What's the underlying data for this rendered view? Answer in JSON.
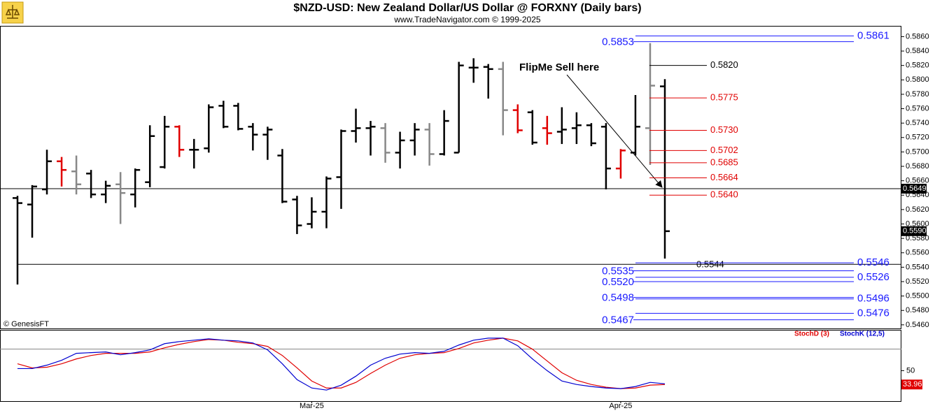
{
  "chart_data": [
    {
      "type": "ohlc",
      "title": "$NZD-USD:  New Zealand Dollar/US Dollar @ FORXNY  (Daily bars)",
      "subtitle": "www.TradeNavigator.com © 1999-2025",
      "source": "© GenesisFT",
      "annotation": "FlipMe Sell here",
      "categories": [
        null,
        null,
        null,
        null,
        null,
        null,
        null,
        null,
        null,
        null,
        null,
        null,
        null,
        null,
        null,
        null,
        null,
        null,
        null,
        null,
        "Mar-25",
        null,
        null,
        null,
        null,
        null,
        null,
        null,
        null,
        null,
        null,
        null,
        null,
        null,
        null,
        null,
        null,
        null,
        null,
        null,
        null,
        "Apr-25",
        null,
        null,
        null
      ],
      "open": [
        0.5636,
        0.5627,
        0.5648,
        0.5687,
        0.5673,
        0.567,
        0.5641,
        0.5655,
        0.5641,
        0.5658,
        0.5679,
        0.5735,
        0.5703,
        0.5705,
        0.5764,
        0.5764,
        0.5735,
        0.5724,
        0.5695,
        0.5634,
        0.56,
        0.5617,
        0.5665,
        0.5729,
        0.5733,
        0.5733,
        0.5699,
        0.5716,
        0.5731,
        0.5697,
        0.5699,
        0.5817,
        0.5818,
        0.5815,
        0.5758,
        0.5755,
        0.5733,
        0.5728,
        0.5733,
        0.5737,
        0.5735,
        0.5677,
        0.5699,
        0.5733,
        0.5791
      ],
      "high": [
        0.5639,
        0.5654,
        0.5703,
        0.5693,
        0.5695,
        0.5675,
        0.566,
        0.5672,
        0.5677,
        0.5737,
        0.575,
        0.5737,
        0.5718,
        0.5766,
        0.5771,
        0.5768,
        0.574,
        0.5735,
        0.5704,
        0.5639,
        0.5637,
        0.5666,
        0.5731,
        0.576,
        0.5743,
        0.574,
        0.5728,
        0.574,
        0.574,
        0.5758,
        0.5825,
        0.583,
        0.5822,
        0.5825,
        0.5766,
        0.5758,
        0.575,
        0.5762,
        0.5755,
        0.574,
        0.574,
        0.5704,
        0.5779,
        0.5851,
        0.5801
      ],
      "low": [
        0.5516,
        0.5581,
        0.5641,
        0.5652,
        0.5641,
        0.5636,
        0.5629,
        0.56,
        0.5623,
        0.5651,
        0.5677,
        0.5693,
        0.5677,
        0.5699,
        0.5733,
        0.573,
        0.5702,
        0.5689,
        0.5629,
        0.5586,
        0.5594,
        0.5594,
        0.5621,
        0.5713,
        0.5695,
        0.5685,
        0.5677,
        0.5695,
        0.5681,
        0.5695,
        0.5699,
        0.5796,
        0.5774,
        0.5723,
        0.5726,
        0.571,
        0.571,
        0.5711,
        0.5711,
        0.5708,
        0.5648,
        0.5663,
        0.5695,
        0.5682,
        0.5552
      ],
      "close": [
        0.5629,
        0.5652,
        0.5687,
        0.5675,
        0.5655,
        0.5641,
        0.5653,
        0.5643,
        0.5675,
        0.5722,
        0.5735,
        0.5703,
        0.5703,
        0.5762,
        0.5735,
        0.5732,
        0.5724,
        0.5731,
        0.5631,
        0.5598,
        0.5617,
        0.5663,
        0.5729,
        0.5733,
        0.5735,
        0.5699,
        0.5716,
        0.5731,
        0.5697,
        0.5743,
        0.582,
        0.5817,
        0.5815,
        0.5758,
        0.573,
        0.5713,
        0.5726,
        0.5731,
        0.5737,
        0.5712,
        0.5677,
        0.5702,
        0.5735,
        0.5792,
        0.559
      ],
      "bar_colors": [
        "#000000",
        "#000000",
        "#000000",
        "#e00000",
        "#888888",
        "#000000",
        "#000000",
        "#888888",
        "#000000",
        "#000000",
        "#000000",
        "#e00000",
        "#000000",
        "#000000",
        "#000000",
        "#000000",
        "#000000",
        "#000000",
        "#000000",
        "#000000",
        "#000000",
        "#000000",
        "#000000",
        "#000000",
        "#000000",
        "#888888",
        "#000000",
        "#000000",
        "#888888",
        "#000000",
        "#000000",
        "#000000",
        "#000000",
        "#888888",
        "#e00000",
        "#000000",
        "#e00000",
        "#000000",
        "#000000",
        "#000000",
        "#000000",
        "#e00000",
        "#000000",
        "#888888",
        "#000000"
      ],
      "ylim": [
        0.5455,
        0.5874
      ],
      "yticks": [
        {
          "value": 0.546,
          "label": "0.5460"
        },
        {
          "value": 0.548,
          "label": "0.5480"
        },
        {
          "value": 0.55,
          "label": "0.5500"
        },
        {
          "value": 0.552,
          "label": "0.5520"
        },
        {
          "value": 0.554,
          "label": "0.5540"
        },
        {
          "value": 0.556,
          "label": "0.5560"
        },
        {
          "value": 0.558,
          "label": "0.5580"
        },
        {
          "value": 0.56,
          "label": "0.5600"
        },
        {
          "value": 0.562,
          "label": "0.5620"
        },
        {
          "value": 0.564,
          "label": "0.5640"
        },
        {
          "value": 0.566,
          "label": "0.5660"
        },
        {
          "value": 0.568,
          "label": "0.5680"
        },
        {
          "value": 0.57,
          "label": "0.5700"
        },
        {
          "value": 0.572,
          "label": "0.5720"
        },
        {
          "value": 0.574,
          "label": "0.5740"
        },
        {
          "value": 0.576,
          "label": "0.5760"
        },
        {
          "value": 0.578,
          "label": "0.5780"
        },
        {
          "value": 0.58,
          "label": "0.5800"
        },
        {
          "value": 0.582,
          "label": "0.5820"
        },
        {
          "value": 0.584,
          "label": "0.5840"
        },
        {
          "value": 0.586,
          "label": "0.5860"
        }
      ],
      "hlines": [
        0.5649,
        0.5544
      ],
      "price_markers": [
        {
          "value": 0.5649,
          "label": "0.5649"
        },
        {
          "value": 0.559,
          "label": "0.5590"
        }
      ],
      "fib_levels": [
        {
          "value": 0.582,
          "label": "0.5820",
          "color": "#000000"
        },
        {
          "value": 0.5775,
          "label": "0.5775",
          "color": "#e00000"
        },
        {
          "value": 0.573,
          "label": "0.5730",
          "color": "#e00000"
        },
        {
          "value": 0.5702,
          "label": "0.5702",
          "color": "#e00000"
        },
        {
          "value": 0.5685,
          "label": "0.5685",
          "color": "#e00000"
        },
        {
          "value": 0.5664,
          "label": "0.5664",
          "color": "#e00000"
        },
        {
          "value": 0.564,
          "label": "0.5640",
          "color": "#e00000"
        }
      ],
      "mid_levels": [
        {
          "value": 0.5544,
          "label": "0.5544",
          "color": "#000000"
        }
      ],
      "right_levels": [
        {
          "value": 0.5861,
          "label": "0.5861"
        },
        {
          "value": 0.5546,
          "label": "0.5546"
        },
        {
          "value": 0.5526,
          "label": "0.5526"
        },
        {
          "value": 0.5496,
          "label": "0.5496"
        },
        {
          "value": 0.5476,
          "label": "0.5476"
        }
      ],
      "left_levels": [
        {
          "value": 0.5853,
          "label": "0.5853"
        },
        {
          "value": 0.5535,
          "label": "0.5535"
        },
        {
          "value": 0.552,
          "label": "0.5520"
        },
        {
          "value": 0.5498,
          "label": "0.5498"
        },
        {
          "value": 0.5467,
          "label": "0.5467"
        }
      ],
      "level_color": "#1a1aff"
    },
    {
      "type": "line",
      "series": [
        {
          "name": "StochD (3)",
          "color": "#e00000",
          "values": [
            58.0,
            53.2,
            54.0,
            58.0,
            63.6,
            67.6,
            70.1,
            70.1,
            70.1,
            71.7,
            76.5,
            80.5,
            83.7,
            86.1,
            85.3,
            82.9,
            81.3,
            78.1,
            67.6,
            53.2,
            38.0,
            29.9,
            29.9,
            36.4,
            46.8,
            56.4,
            64.4,
            68.4,
            70.1,
            70.9,
            75.7,
            82.1,
            85.3,
            87.7,
            84.5,
            74.9,
            61.2,
            47.6,
            38.8,
            34.0,
            30.8,
            29.2,
            29.9,
            33.2,
            33.96
          ]
        },
        {
          "name": "StochK (12,5)",
          "color": "#0000d0",
          "values": [
            52.4,
            52.4,
            56.4,
            62.0,
            70.1,
            70.9,
            71.7,
            68.4,
            70.9,
            74.1,
            81.3,
            83.7,
            85.3,
            86.9,
            85.3,
            84.5,
            82.1,
            74.1,
            58.0,
            39.6,
            29.9,
            27.5,
            33.2,
            43.6,
            56.4,
            64.4,
            69.2,
            70.9,
            70.1,
            72.5,
            79.7,
            85.3,
            87.7,
            87.7,
            78.9,
            63.6,
            50.0,
            38.0,
            34.0,
            31.6,
            29.9,
            29.2,
            31.6,
            36.4,
            34.8
          ]
        }
      ],
      "ylim": [
        14.7,
        96.5
      ],
      "yticks": [
        50
      ],
      "hlines": [
        75
      ]
    }
  ]
}
